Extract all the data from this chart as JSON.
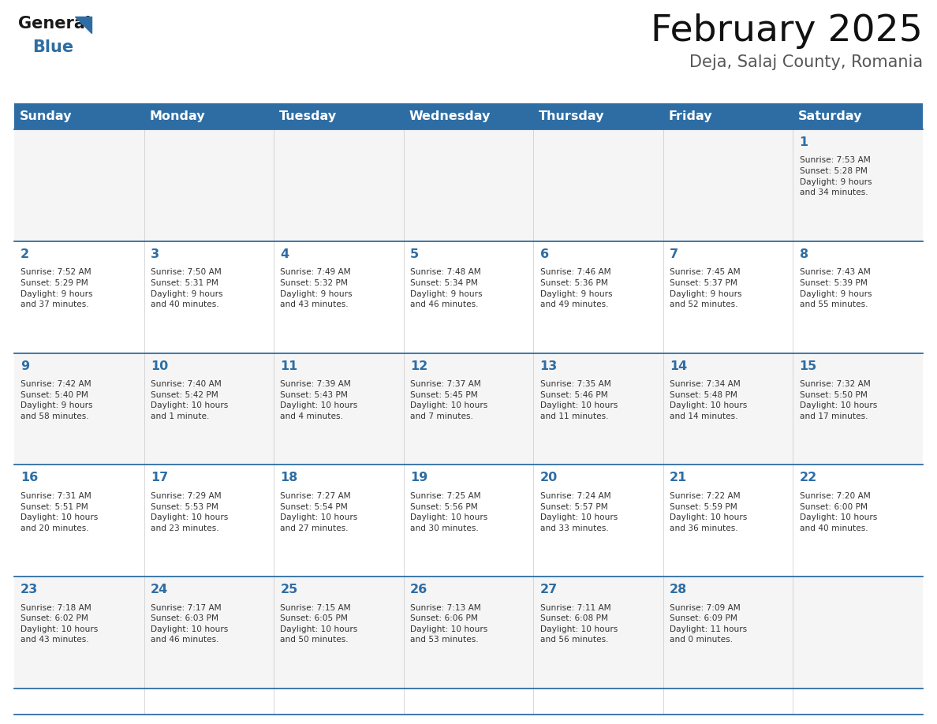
{
  "title": "February 2025",
  "subtitle": "Deja, Salaj County, Romania",
  "days_of_week": [
    "Sunday",
    "Monday",
    "Tuesday",
    "Wednesday",
    "Thursday",
    "Friday",
    "Saturday"
  ],
  "header_bg": "#2E6DA4",
  "header_text": "#FFFFFF",
  "cell_bg_odd": "#F5F5F5",
  "cell_bg_even": "#FFFFFF",
  "line_color": "#2E6DA4",
  "title_color": "#111111",
  "subtitle_color": "#555555",
  "day_number_color": "#2E6DA4",
  "cell_text_color": "#333333",
  "logo_general_color": "#1a1a1a",
  "logo_blue_color": "#2E6DA4",
  "weeks": [
    [
      {
        "day": null,
        "info": null
      },
      {
        "day": null,
        "info": null
      },
      {
        "day": null,
        "info": null
      },
      {
        "day": null,
        "info": null
      },
      {
        "day": null,
        "info": null
      },
      {
        "day": null,
        "info": null
      },
      {
        "day": 1,
        "info": "Sunrise: 7:53 AM\nSunset: 5:28 PM\nDaylight: 9 hours\nand 34 minutes."
      }
    ],
    [
      {
        "day": 2,
        "info": "Sunrise: 7:52 AM\nSunset: 5:29 PM\nDaylight: 9 hours\nand 37 minutes."
      },
      {
        "day": 3,
        "info": "Sunrise: 7:50 AM\nSunset: 5:31 PM\nDaylight: 9 hours\nand 40 minutes."
      },
      {
        "day": 4,
        "info": "Sunrise: 7:49 AM\nSunset: 5:32 PM\nDaylight: 9 hours\nand 43 minutes."
      },
      {
        "day": 5,
        "info": "Sunrise: 7:48 AM\nSunset: 5:34 PM\nDaylight: 9 hours\nand 46 minutes."
      },
      {
        "day": 6,
        "info": "Sunrise: 7:46 AM\nSunset: 5:36 PM\nDaylight: 9 hours\nand 49 minutes."
      },
      {
        "day": 7,
        "info": "Sunrise: 7:45 AM\nSunset: 5:37 PM\nDaylight: 9 hours\nand 52 minutes."
      },
      {
        "day": 8,
        "info": "Sunrise: 7:43 AM\nSunset: 5:39 PM\nDaylight: 9 hours\nand 55 minutes."
      }
    ],
    [
      {
        "day": 9,
        "info": "Sunrise: 7:42 AM\nSunset: 5:40 PM\nDaylight: 9 hours\nand 58 minutes."
      },
      {
        "day": 10,
        "info": "Sunrise: 7:40 AM\nSunset: 5:42 PM\nDaylight: 10 hours\nand 1 minute."
      },
      {
        "day": 11,
        "info": "Sunrise: 7:39 AM\nSunset: 5:43 PM\nDaylight: 10 hours\nand 4 minutes."
      },
      {
        "day": 12,
        "info": "Sunrise: 7:37 AM\nSunset: 5:45 PM\nDaylight: 10 hours\nand 7 minutes."
      },
      {
        "day": 13,
        "info": "Sunrise: 7:35 AM\nSunset: 5:46 PM\nDaylight: 10 hours\nand 11 minutes."
      },
      {
        "day": 14,
        "info": "Sunrise: 7:34 AM\nSunset: 5:48 PM\nDaylight: 10 hours\nand 14 minutes."
      },
      {
        "day": 15,
        "info": "Sunrise: 7:32 AM\nSunset: 5:50 PM\nDaylight: 10 hours\nand 17 minutes."
      }
    ],
    [
      {
        "day": 16,
        "info": "Sunrise: 7:31 AM\nSunset: 5:51 PM\nDaylight: 10 hours\nand 20 minutes."
      },
      {
        "day": 17,
        "info": "Sunrise: 7:29 AM\nSunset: 5:53 PM\nDaylight: 10 hours\nand 23 minutes."
      },
      {
        "day": 18,
        "info": "Sunrise: 7:27 AM\nSunset: 5:54 PM\nDaylight: 10 hours\nand 27 minutes."
      },
      {
        "day": 19,
        "info": "Sunrise: 7:25 AM\nSunset: 5:56 PM\nDaylight: 10 hours\nand 30 minutes."
      },
      {
        "day": 20,
        "info": "Sunrise: 7:24 AM\nSunset: 5:57 PM\nDaylight: 10 hours\nand 33 minutes."
      },
      {
        "day": 21,
        "info": "Sunrise: 7:22 AM\nSunset: 5:59 PM\nDaylight: 10 hours\nand 36 minutes."
      },
      {
        "day": 22,
        "info": "Sunrise: 7:20 AM\nSunset: 6:00 PM\nDaylight: 10 hours\nand 40 minutes."
      }
    ],
    [
      {
        "day": 23,
        "info": "Sunrise: 7:18 AM\nSunset: 6:02 PM\nDaylight: 10 hours\nand 43 minutes."
      },
      {
        "day": 24,
        "info": "Sunrise: 7:17 AM\nSunset: 6:03 PM\nDaylight: 10 hours\nand 46 minutes."
      },
      {
        "day": 25,
        "info": "Sunrise: 7:15 AM\nSunset: 6:05 PM\nDaylight: 10 hours\nand 50 minutes."
      },
      {
        "day": 26,
        "info": "Sunrise: 7:13 AM\nSunset: 6:06 PM\nDaylight: 10 hours\nand 53 minutes."
      },
      {
        "day": 27,
        "info": "Sunrise: 7:11 AM\nSunset: 6:08 PM\nDaylight: 10 hours\nand 56 minutes."
      },
      {
        "day": 28,
        "info": "Sunrise: 7:09 AM\nSunset: 6:09 PM\nDaylight: 11 hours\nand 0 minutes."
      },
      {
        "day": null,
        "info": null
      }
    ]
  ]
}
